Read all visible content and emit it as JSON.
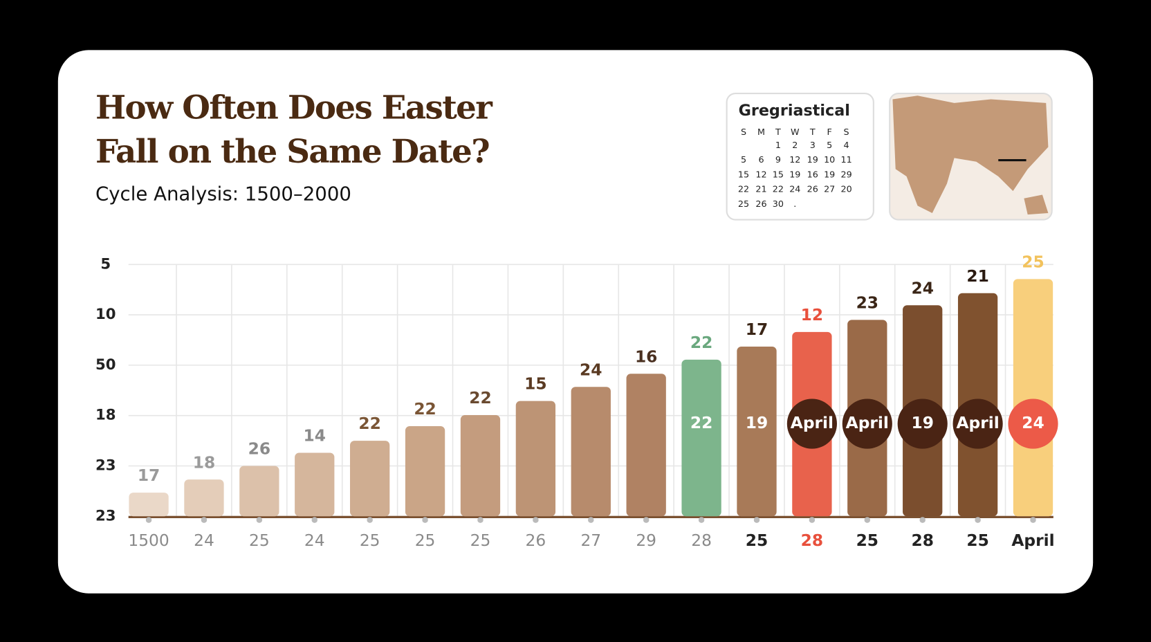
{
  "chart_data": {
    "type": "bar",
    "title_lines": [
      "How Often Does Easter",
      "Fall on the Same Date?"
    ],
    "subtitle": "Cycle Analysis: 1500–2000",
    "categories": [
      "1500",
      "24",
      "25",
      "24",
      "25",
      "25",
      "25",
      "26",
      "27",
      "29",
      "28",
      "25",
      "28",
      "25",
      "28",
      "25",
      "April"
    ],
    "values": [
      0.47,
      0.73,
      1.0,
      1.26,
      1.5,
      1.79,
      2.01,
      2.29,
      2.57,
      2.83,
      3.11,
      3.37,
      3.66,
      3.9,
      4.19,
      4.43,
      4.71
    ],
    "value_labels": [
      "17",
      "18",
      "26",
      "14",
      "22",
      "22",
      "22",
      "15",
      "24",
      "16",
      "22",
      "17",
      "12",
      "23",
      "24",
      "21",
      "25"
    ],
    "inner_labels": [
      null,
      null,
      null,
      null,
      null,
      null,
      null,
      null,
      null,
      null,
      "22",
      "19",
      "April",
      "April",
      "19",
      "April",
      "24"
    ],
    "colors": [
      "#ead8c8",
      "#e4cdb9",
      "#dcc1aa",
      "#d5b69c",
      "#cfad91",
      "#caa587",
      "#c49c7e",
      "#bd9475",
      "#b78b6c",
      "#b08263",
      "#7db58c",
      "#a87a58",
      "#e8624c",
      "#9a6a48",
      "#7b4e2e",
      "#80522f",
      "#f8cf7c"
    ],
    "label_colors": [
      "#9a9a9a",
      "#9a9a9a",
      "#8a8a8a",
      "#8a8a8a",
      "#7a5535",
      "#7a5535",
      "#6a4a30",
      "#5a3a22",
      "#5a3a22",
      "#4a3020",
      "#6aa87e",
      "#3a2516",
      "#e8503c",
      "#3a2516",
      "#3a2516",
      "#2a1a10",
      "#f2c25c"
    ],
    "badge_colors": [
      null,
      null,
      null,
      null,
      null,
      null,
      null,
      null,
      null,
      null,
      null,
      null,
      "#4a2414",
      "#4a2414",
      "#4a2414",
      "#4a2414",
      "#ec5a48"
    ],
    "category_colors": [
      "#8a8a8a",
      "#8a8a8a",
      "#8a8a8a",
      "#8a8a8a",
      "#8a8a8a",
      "#8a8a8a",
      "#8a8a8a",
      "#8a8a8a",
      "#8a8a8a",
      "#8a8a8a",
      "#8a8a8a",
      "#222222",
      "#e8503c",
      "#222222",
      "#222222",
      "#222222",
      "#222222"
    ],
    "ylim": [
      0,
      5
    ],
    "yticks": [
      {
        "value": 0,
        "label": "23"
      },
      {
        "value": 1,
        "label": "23"
      },
      {
        "value": 2,
        "label": "18"
      },
      {
        "value": 3,
        "label": "50"
      },
      {
        "value": 4,
        "label": "10"
      },
      {
        "value": 5,
        "label": "5"
      }
    ],
    "grid": true
  },
  "calendar": {
    "title": "Gregriastical",
    "header": [
      "S",
      "M",
      "T",
      "W",
      "T",
      "F",
      "S"
    ],
    "rows": [
      [
        null,
        null,
        "1",
        "2",
        "3",
        "5",
        "4"
      ],
      [
        "5",
        "6",
        "9",
        "12",
        "19",
        "10",
        "11"
      ],
      [
        "15",
        "12",
        "15",
        "19",
        "16",
        "19",
        "29"
      ],
      [
        "22",
        "21",
        "22",
        "24",
        "26",
        "27",
        "20"
      ],
      [
        "25",
        "26",
        "30",
        ".",
        null,
        null,
        null
      ]
    ]
  }
}
